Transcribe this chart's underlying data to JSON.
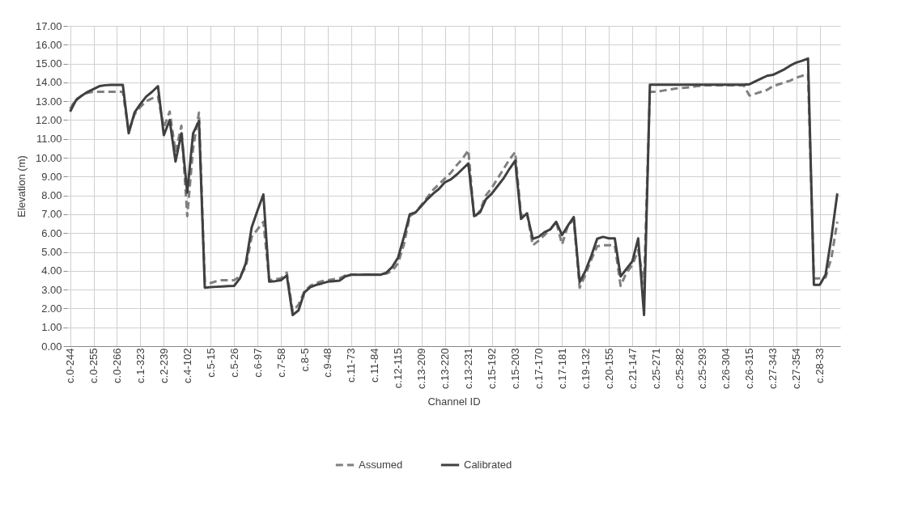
{
  "chart_data": {
    "type": "line",
    "xlabel": "Channel ID",
    "ylabel": "Elevation (m)",
    "categories": [
      "c.0-244",
      null,
      null,
      null,
      "c.0-255",
      null,
      null,
      null,
      "c.0-266",
      null,
      null,
      null,
      "c.1-323",
      null,
      null,
      null,
      "c.2-239",
      null,
      null,
      null,
      "c.4-102",
      null,
      null,
      null,
      "c.5-15",
      null,
      null,
      null,
      "c.5-26",
      null,
      null,
      null,
      "c.6-97",
      null,
      null,
      null,
      "c.7-58",
      null,
      null,
      null,
      "c.8-5",
      null,
      null,
      null,
      "c.9-48",
      null,
      null,
      null,
      "c.11-73",
      null,
      null,
      null,
      "c.11-84",
      null,
      null,
      null,
      "c.12-115",
      null,
      null,
      null,
      "c.13-209",
      null,
      null,
      null,
      "c.13-220",
      null,
      null,
      null,
      "c.13-231",
      null,
      null,
      null,
      "c.15-192",
      null,
      null,
      null,
      "c.15-203",
      null,
      null,
      null,
      "c.17-170",
      null,
      null,
      null,
      "c.17-181",
      null,
      null,
      null,
      "c.19-132",
      null,
      null,
      null,
      "c.20-155",
      null,
      null,
      null,
      "c.21-147",
      null,
      null,
      null,
      "c.25-271",
      null,
      null,
      null,
      "c.25-282",
      null,
      null,
      null,
      "c.25-293",
      null,
      null,
      null,
      "c.26-304",
      null,
      null,
      null,
      "c.26-315",
      null,
      null,
      null,
      "c.27-343",
      null,
      null,
      null,
      "c.27-354",
      null,
      null,
      null,
      "c.28-33",
      null,
      null,
      null
    ],
    "series": [
      {
        "name": "Assumed",
        "color": "#808080",
        "line_style": "dashed",
        "values": [
          12.6,
          13.1,
          13.3,
          13.45,
          13.5,
          13.5,
          13.5,
          13.5,
          13.5,
          13.5,
          11.4,
          12.3,
          12.7,
          13.0,
          13.15,
          13.25,
          11.6,
          12.45,
          10.3,
          11.7,
          6.9,
          10.5,
          12.4,
          3.4,
          3.35,
          3.45,
          3.5,
          3.5,
          3.5,
          3.7,
          4.2,
          5.8,
          6.2,
          6.6,
          3.5,
          3.55,
          3.6,
          3.9,
          1.85,
          2.2,
          2.9,
          3.2,
          3.35,
          3.45,
          3.5,
          3.55,
          3.6,
          3.75,
          3.8,
          3.8,
          3.8,
          3.8,
          3.8,
          3.8,
          3.85,
          4.0,
          4.4,
          5.4,
          6.9,
          7.1,
          7.5,
          7.9,
          8.3,
          8.6,
          8.9,
          9.2,
          9.6,
          9.95,
          10.4,
          6.8,
          7.2,
          8.0,
          8.4,
          8.9,
          9.4,
          9.9,
          10.3,
          6.9,
          7.1,
          5.35,
          5.6,
          5.9,
          6.2,
          6.6,
          5.4,
          6.4,
          6.7,
          3.1,
          3.8,
          4.6,
          5.3,
          5.35,
          5.36,
          5.36,
          3.2,
          3.9,
          4.3,
          5.1,
          3.3,
          13.5,
          13.5,
          13.55,
          13.6,
          13.65,
          13.7,
          13.72,
          13.75,
          13.8,
          13.82,
          13.85,
          13.85,
          13.85,
          13.85,
          13.85,
          13.85,
          13.85,
          13.3,
          13.4,
          13.5,
          13.6,
          13.8,
          13.9,
          14.0,
          14.1,
          14.25,
          14.35,
          14.45,
          3.6,
          3.6,
          3.65,
          4.7,
          6.6
        ]
      },
      {
        "name": "Calibrated",
        "color": "#404040",
        "line_style": "solid",
        "values": [
          12.45,
          13.05,
          13.3,
          13.5,
          13.65,
          13.8,
          13.85,
          13.87,
          13.87,
          13.87,
          11.3,
          12.4,
          12.85,
          13.25,
          13.5,
          13.8,
          11.2,
          12.0,
          9.8,
          11.3,
          8.15,
          11.3,
          11.95,
          3.1,
          3.13,
          3.15,
          3.17,
          3.19,
          3.2,
          3.6,
          4.4,
          6.3,
          7.2,
          8.05,
          3.42,
          3.45,
          3.5,
          3.75,
          1.65,
          1.9,
          2.85,
          3.13,
          3.25,
          3.33,
          3.42,
          3.45,
          3.48,
          3.7,
          3.79,
          3.79,
          3.79,
          3.8,
          3.79,
          3.79,
          3.9,
          4.2,
          4.7,
          5.8,
          7.0,
          7.1,
          7.45,
          7.8,
          8.1,
          8.35,
          8.7,
          8.85,
          9.1,
          9.4,
          9.7,
          6.9,
          7.1,
          7.8,
          8.1,
          8.5,
          8.9,
          9.4,
          9.85,
          6.75,
          7.05,
          5.7,
          5.8,
          6.05,
          6.2,
          6.6,
          5.9,
          6.4,
          6.85,
          3.4,
          4.0,
          4.8,
          5.7,
          5.8,
          5.72,
          5.72,
          3.7,
          4.1,
          4.5,
          5.72,
          1.65,
          13.88,
          13.88,
          13.88,
          13.88,
          13.88,
          13.88,
          13.88,
          13.88,
          13.88,
          13.88,
          13.88,
          13.88,
          13.88,
          13.88,
          13.88,
          13.88,
          13.88,
          13.9,
          14.05,
          14.2,
          14.35,
          14.4,
          14.55,
          14.7,
          14.9,
          15.05,
          15.15,
          15.27,
          3.25,
          3.25,
          3.8,
          5.8,
          8.1
        ]
      }
    ],
    "ylim": [
      0,
      17
    ],
    "yticks": [
      {
        "value": 0,
        "label": "0.00"
      },
      {
        "value": 1,
        "label": "1.00"
      },
      {
        "value": 2,
        "label": "2.00"
      },
      {
        "value": 3,
        "label": "3.00"
      },
      {
        "value": 4,
        "label": "4.00"
      },
      {
        "value": 5,
        "label": "5.00"
      },
      {
        "value": 6,
        "label": "6.00"
      },
      {
        "value": 7,
        "label": "7.00"
      },
      {
        "value": 8,
        "label": "8.00"
      },
      {
        "value": 9,
        "label": "9.00"
      },
      {
        "value": 10,
        "label": "10.00"
      },
      {
        "value": 11,
        "label": "11.00"
      },
      {
        "value": 12,
        "label": "12.00"
      },
      {
        "value": 13,
        "label": "13.00"
      },
      {
        "value": 14,
        "label": "14.00"
      },
      {
        "value": 15,
        "label": "15.00"
      },
      {
        "value": 16,
        "label": "16.00"
      },
      {
        "value": 17,
        "label": "17.00"
      }
    ],
    "grid": true,
    "legend": "bottom"
  }
}
